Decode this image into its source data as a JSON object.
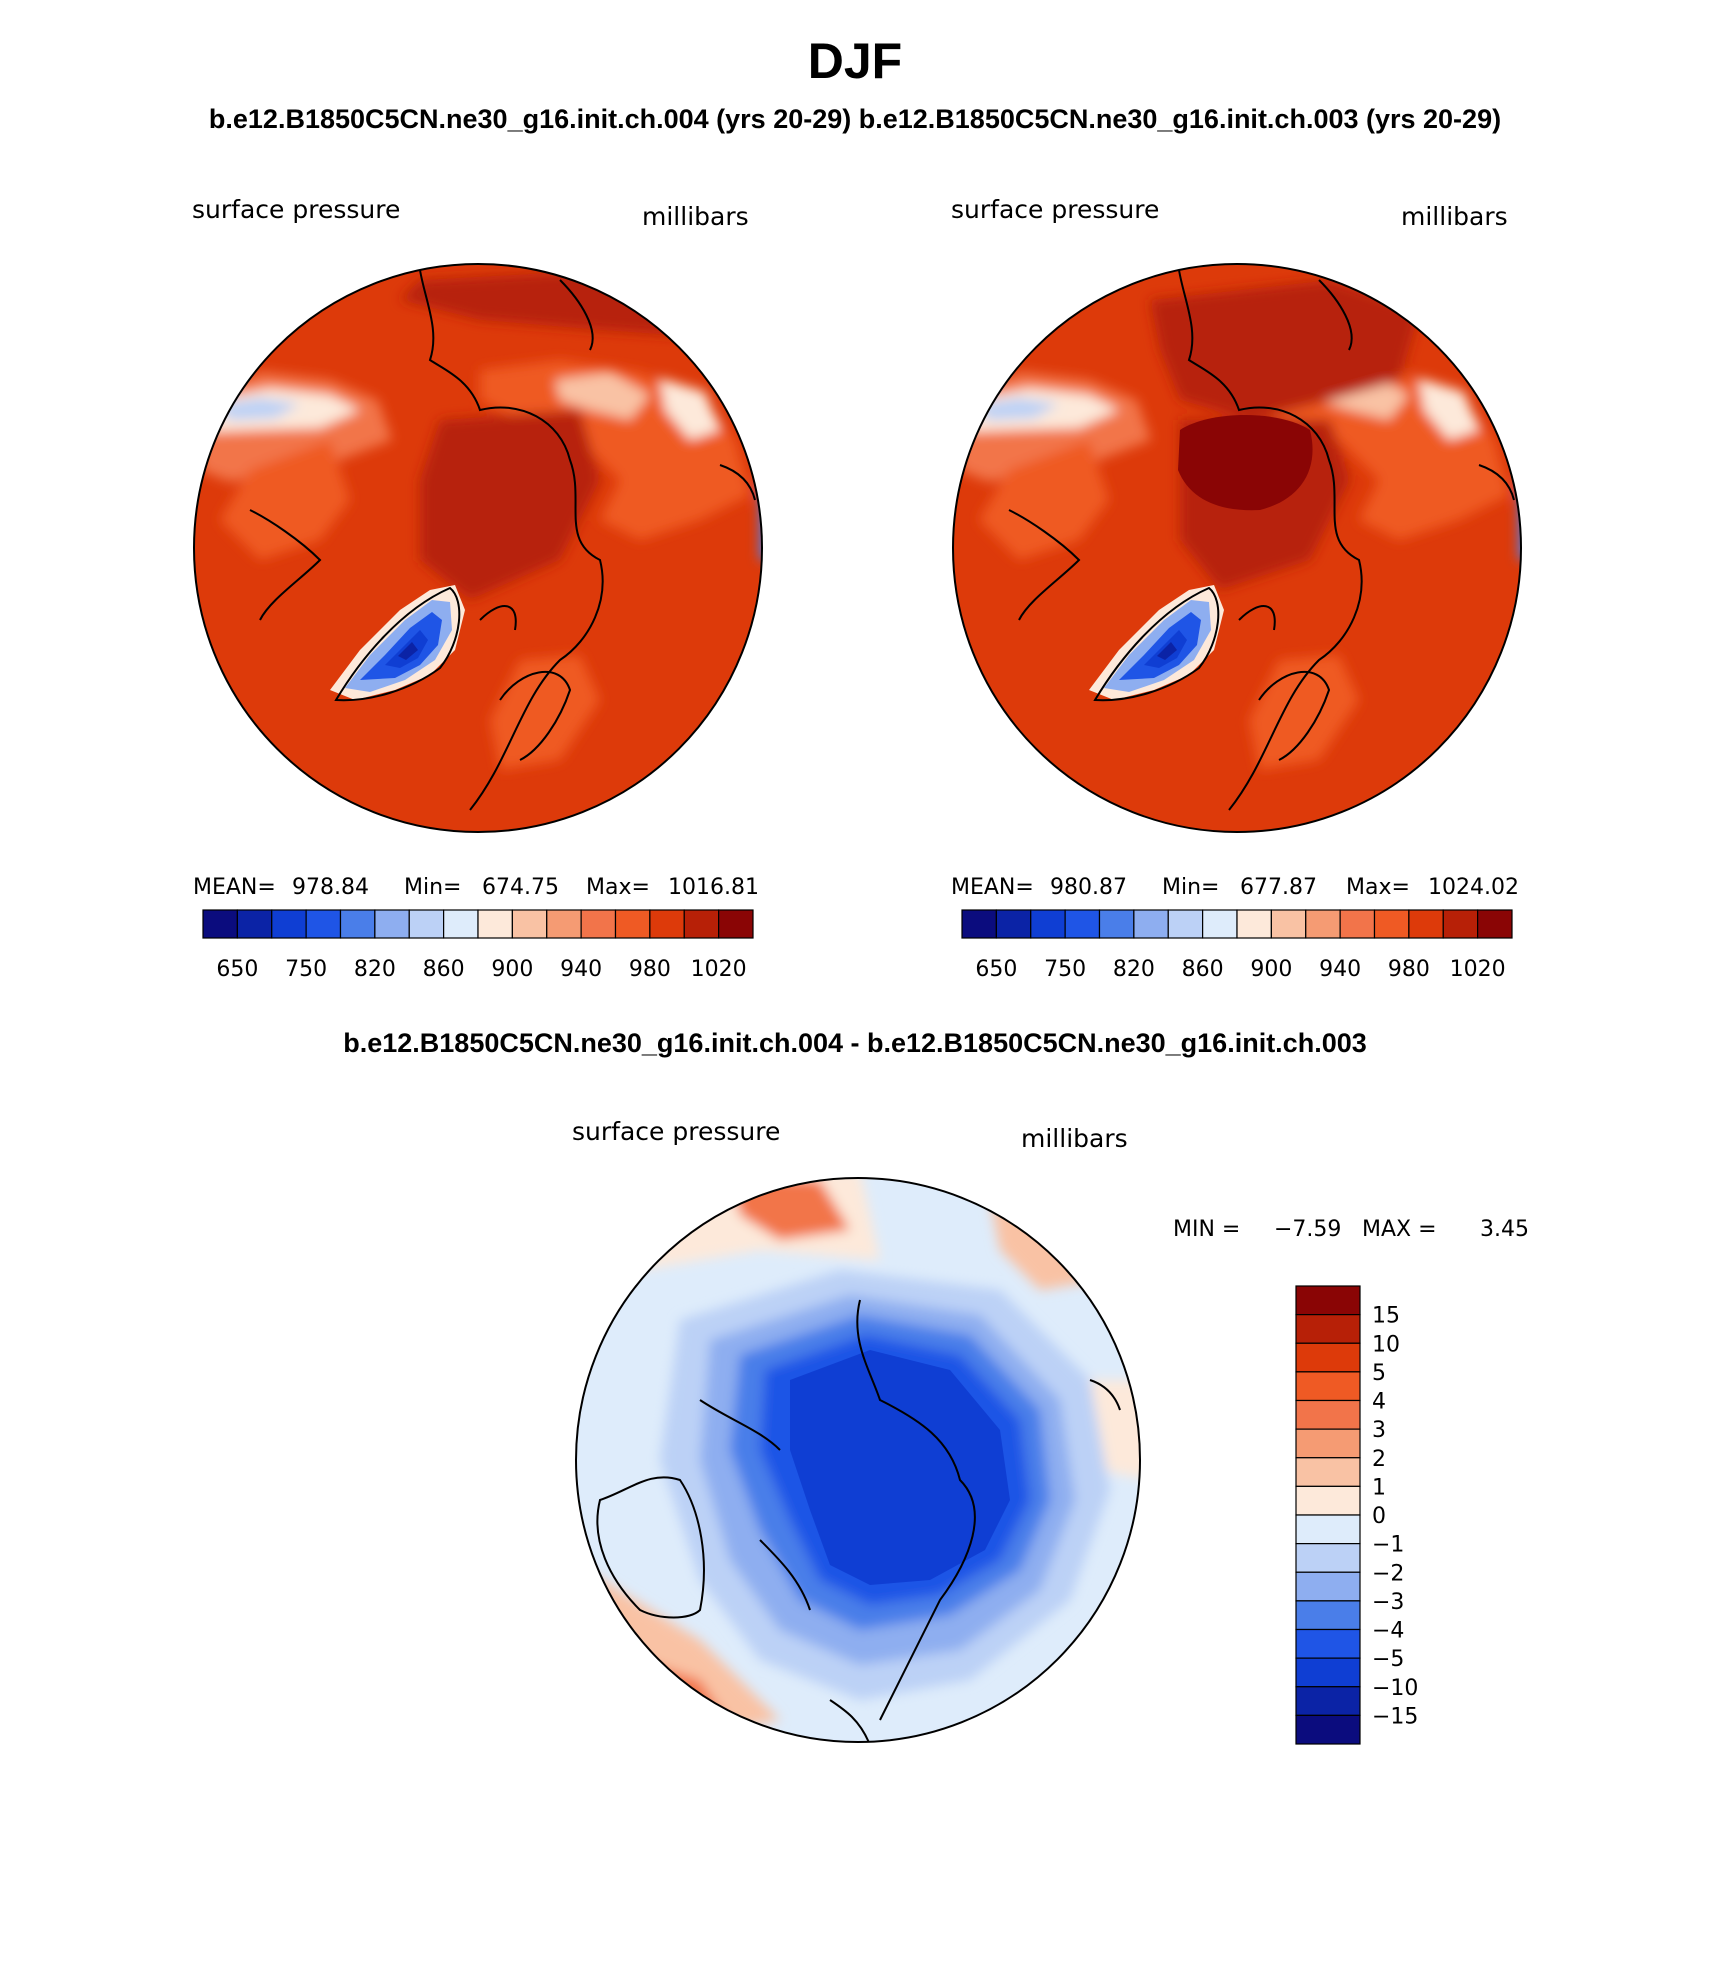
{
  "page": {
    "title": "DJF",
    "case_titles": "b.e12.B1850C5CN.ne30_g16.init.ch.004 (yrs 20-29) b.e12.B1850C5CN.ne30_g16.init.ch.003 (yrs 20-29)",
    "diff_title": "b.e12.B1850C5CN.ne30_g16.init.ch.004 - b.e12.B1850C5CN.ne30_g16.init.ch.003"
  },
  "chart_data": [
    {
      "type": "heatmap",
      "projection": "north polar stereographic",
      "case": "b.e12.B1850C5CN.ne30_g16.init.ch.004 (yrs 20-29)",
      "left_label": "surface pressure",
      "right_label": "millibars",
      "stats": {
        "mean_label": "MEAN=",
        "mean": "978.84",
        "min_label": "Min=",
        "min": "674.75",
        "max_label": "Max=",
        "max": "1016.81"
      },
      "colorbar_labels": [
        "650",
        "750",
        "820",
        "860",
        "900",
        "940",
        "980",
        "1020"
      ],
      "colorbar_colors": [
        "#0b0c7e",
        "#0b23a6",
        "#0f3ed3",
        "#1f55e6",
        "#4a7ee9",
        "#8eaef0",
        "#bcd1f6",
        "#deecfb",
        "#fde9da",
        "#f9c2a4",
        "#f59b73",
        "#f2744a",
        "#ef5a24",
        "#dd3a0a",
        "#b72007",
        "#8a0505"
      ]
    },
    {
      "type": "heatmap",
      "projection": "north polar stereographic",
      "case": "b.e12.B1850C5CN.ne30_g16.init.ch.003 (yrs 20-29)",
      "left_label": "surface pressure",
      "right_label": "millibars",
      "stats": {
        "mean_label": "MEAN=",
        "mean": "980.87",
        "min_label": "Min=",
        "min": "677.87",
        "max_label": "Max=",
        "max": "1024.02"
      },
      "colorbar_labels": [
        "650",
        "750",
        "820",
        "860",
        "900",
        "940",
        "980",
        "1020"
      ],
      "colorbar_colors": [
        "#0b0c7e",
        "#0b23a6",
        "#0f3ed3",
        "#1f55e6",
        "#4a7ee9",
        "#8eaef0",
        "#bcd1f6",
        "#deecfb",
        "#fde9da",
        "#f9c2a4",
        "#f59b73",
        "#f2744a",
        "#ef5a24",
        "#dd3a0a",
        "#b72007",
        "#8a0505"
      ]
    },
    {
      "type": "heatmap",
      "projection": "north polar stereographic",
      "case": "b.e12.B1850C5CN.ne30_g16.init.ch.004 - b.e12.B1850C5CN.ne30_g16.init.ch.003",
      "left_label": "surface pressure",
      "right_label": "millibars",
      "stats": {
        "min_label": "MIN =",
        "min": "−7.59",
        "max_label": "MAX =",
        "max": "3.45"
      },
      "colorbar_labels": [
        "15",
        "10",
        "5",
        "4",
        "3",
        "2",
        "1",
        "0",
        "−1",
        "−2",
        "−3",
        "−4",
        "−5",
        "−10",
        "−15"
      ],
      "colorbar_colors": [
        "#8a0505",
        "#b72007",
        "#dd3a0a",
        "#ef5a24",
        "#f2744a",
        "#f59b73",
        "#f9c2a4",
        "#fde9da",
        "#deecfb",
        "#bcd1f6",
        "#8eaef0",
        "#4a7ee9",
        "#1f55e6",
        "#0f3ed3",
        "#0b23a6",
        "#0b0c7e"
      ]
    }
  ]
}
